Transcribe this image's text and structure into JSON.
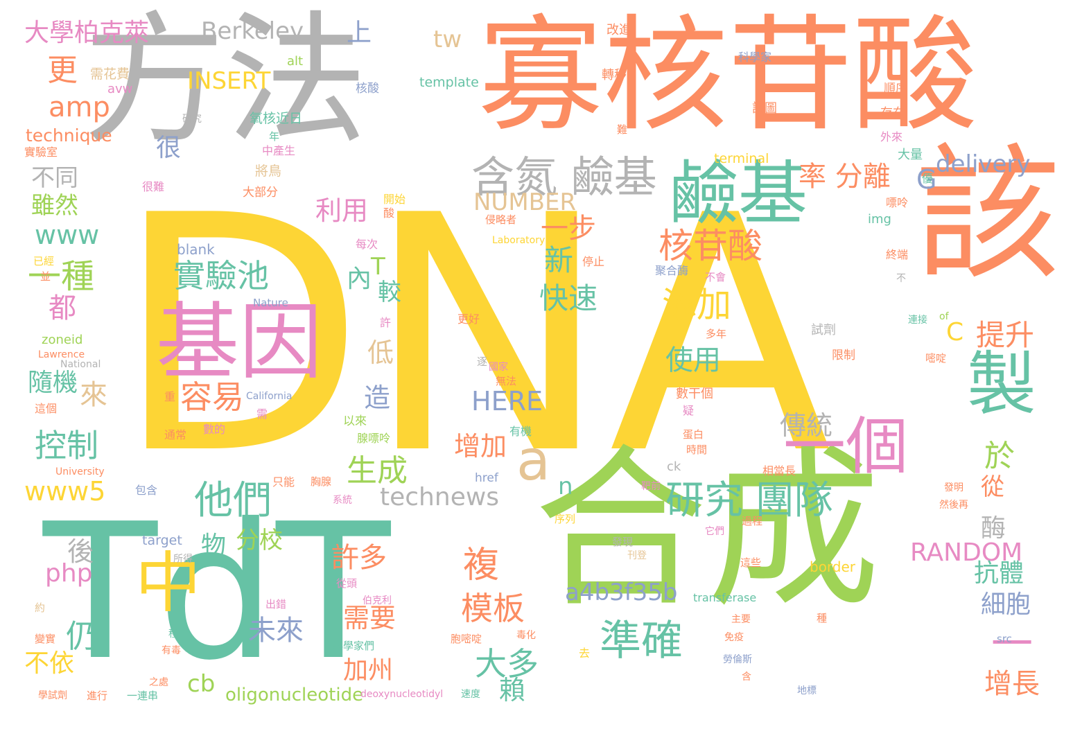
{
  "palette": {
    "yellow": "#fdd535",
    "green": "#9fd356",
    "teal": "#66c2a5",
    "orange": "#fc8d62",
    "gray": "#b3b3b3",
    "pink": "#e78ac3",
    "blue": "#8da0cb",
    "tan": "#e5c494"
  },
  "words": [
    {
      "text": "DNA",
      "color": "yellow"
    },
    {
      "text": "方法",
      "color": "gray"
    },
    {
      "text": "寡核苷酸",
      "color": "orange"
    },
    {
      "text": "該",
      "color": "orange"
    },
    {
      "text": "TdT",
      "color": "teal"
    },
    {
      "text": "合成",
      "color": "green"
    },
    {
      "text": "基因",
      "color": "pink"
    },
    {
      "text": "鹼基",
      "color": "teal"
    },
    {
      "text": "含氮 鹼基",
      "color": "gray"
    },
    {
      "text": "製",
      "color": "teal"
    },
    {
      "text": "一個",
      "color": "pink"
    },
    {
      "text": "中",
      "color": "yellow"
    },
    {
      "text": "a",
      "color": "tan"
    },
    {
      "text": "準確",
      "color": "teal"
    },
    {
      "text": "研究 團隊",
      "color": "teal"
    },
    {
      "text": "他們",
      "color": "teal"
    },
    {
      "text": "實驗池",
      "color": "teal"
    },
    {
      "text": "核苷酸",
      "color": "orange"
    },
    {
      "text": "添加",
      "color": "yellow"
    },
    {
      "text": "容易",
      "color": "orange"
    },
    {
      "text": "大學柏克萊",
      "color": "pink"
    },
    {
      "text": "Berkeley",
      "color": "gray"
    },
    {
      "text": "上",
      "color": "blue"
    },
    {
      "text": "tw",
      "color": "tan"
    },
    {
      "text": "更",
      "color": "orange"
    },
    {
      "text": "INSERT",
      "color": "yellow"
    },
    {
      "text": "amp",
      "color": "orange"
    },
    {
      "text": "technique",
      "color": "orange"
    },
    {
      "text": "很",
      "color": "blue"
    },
    {
      "text": "不同",
      "color": "gray"
    },
    {
      "text": "雖然",
      "color": "green"
    },
    {
      "text": "www",
      "color": "teal"
    },
    {
      "text": "一種",
      "color": "green"
    },
    {
      "text": "都",
      "color": "pink"
    },
    {
      "text": "來",
      "color": "tan"
    },
    {
      "text": "隨機",
      "color": "teal"
    },
    {
      "text": "控制",
      "color": "teal"
    },
    {
      "text": "www5",
      "color": "yellow"
    },
    {
      "text": "php",
      "color": "pink"
    },
    {
      "text": "仍",
      "color": "teal"
    },
    {
      "text": "不依",
      "color": "yellow"
    },
    {
      "text": "後",
      "color": "gray"
    },
    {
      "text": "NUMBER",
      "color": "tan"
    },
    {
      "text": "利用",
      "color": "pink"
    },
    {
      "text": "一步",
      "color": "orange"
    },
    {
      "text": "新",
      "color": "teal"
    },
    {
      "text": "快速",
      "color": "teal"
    },
    {
      "text": "內",
      "color": "teal"
    },
    {
      "text": "T",
      "color": "green"
    },
    {
      "text": "較",
      "color": "teal"
    },
    {
      "text": "低",
      "color": "tan"
    },
    {
      "text": "造",
      "color": "blue"
    },
    {
      "text": "分校",
      "color": "green"
    },
    {
      "text": "物",
      "color": "teal"
    },
    {
      "text": "許多",
      "color": "orange"
    },
    {
      "text": "需要",
      "color": "orange"
    },
    {
      "text": "未來",
      "color": "blue"
    },
    {
      "text": "加州",
      "color": "orange"
    },
    {
      "text": "cb",
      "color": "green"
    },
    {
      "text": "oligonucleotide",
      "color": "green"
    },
    {
      "text": "technews",
      "color": "gray"
    },
    {
      "text": "生成",
      "color": "green"
    },
    {
      "text": "增加",
      "color": "orange"
    },
    {
      "text": "HERE",
      "color": "blue"
    },
    {
      "text": "複",
      "color": "orange"
    },
    {
      "text": "模板",
      "color": "orange"
    },
    {
      "text": "大多",
      "color": "teal"
    },
    {
      "text": "賴",
      "color": "teal"
    },
    {
      "text": "a4b3f35b",
      "color": "blue"
    },
    {
      "text": "使用",
      "color": "teal"
    },
    {
      "text": "n",
      "color": "teal"
    },
    {
      "text": "傳統",
      "color": "gray"
    },
    {
      "text": "率 分離",
      "color": "orange"
    },
    {
      "text": "delivery",
      "color": "blue"
    },
    {
      "text": "G",
      "color": "blue"
    },
    {
      "text": "C",
      "color": "yellow"
    },
    {
      "text": "提升",
      "color": "orange"
    },
    {
      "text": "於",
      "color": "green"
    },
    {
      "text": "從",
      "color": "orange"
    },
    {
      "text": "酶",
      "color": "gray"
    },
    {
      "text": "RANDOM",
      "color": "pink"
    },
    {
      "text": "抗體",
      "color": "teal"
    },
    {
      "text": "細胞",
      "color": "blue"
    },
    {
      "text": "一",
      "color": "pink"
    },
    {
      "text": "增長",
      "color": "orange"
    },
    {
      "text": "template",
      "color": "teal"
    },
    {
      "text": "alt",
      "color": "green"
    },
    {
      "text": "需花費",
      "color": "tan"
    },
    {
      "text": "avw",
      "color": "pink"
    },
    {
      "text": "核酸",
      "color": "blue"
    },
    {
      "text": "研究",
      "color": "gray"
    },
    {
      "text": "氧核近日",
      "color": "teal"
    },
    {
      "text": "年",
      "color": "teal"
    },
    {
      "text": "中產生",
      "color": "pink"
    },
    {
      "text": "將鳥",
      "color": "tan"
    },
    {
      "text": "實驗室",
      "color": "orange"
    },
    {
      "text": "很難",
      "color": "pink"
    },
    {
      "text": "大部分",
      "color": "orange"
    },
    {
      "text": "開始",
      "color": "yellow"
    },
    {
      "text": "酸",
      "color": "orange"
    },
    {
      "text": "改進",
      "color": "orange"
    },
    {
      "text": "轉移",
      "color": "orange"
    },
    {
      "text": "科學家",
      "color": "blue"
    },
    {
      "text": "順序",
      "color": "orange"
    },
    {
      "text": "試圖",
      "color": "orange"
    },
    {
      "text": "存在",
      "color": "orange"
    },
    {
      "text": "難",
      "color": "orange"
    },
    {
      "text": "外來",
      "color": "pink"
    },
    {
      "text": "terminal",
      "color": "yellow"
    },
    {
      "text": "大量",
      "color": "teal"
    },
    {
      "text": "優",
      "color": "teal"
    },
    {
      "text": "嘌呤",
      "color": "orange"
    },
    {
      "text": "侵略者",
      "color": "orange"
    },
    {
      "text": "img",
      "color": "teal"
    },
    {
      "text": "Laboratory",
      "color": "yellow"
    },
    {
      "text": "blank",
      "color": "blue"
    },
    {
      "text": "每次",
      "color": "pink"
    },
    {
      "text": "停止",
      "color": "orange"
    },
    {
      "text": "聚合酶",
      "color": "blue"
    },
    {
      "text": "不會",
      "color": "pink"
    },
    {
      "text": "終端",
      "color": "orange"
    },
    {
      "text": "不",
      "color": "gray"
    },
    {
      "text": "已經",
      "color": "yellow"
    },
    {
      "text": "並",
      "color": "orange"
    },
    {
      "text": "Nature",
      "color": "blue"
    },
    {
      "text": "許",
      "color": "pink"
    },
    {
      "text": "更好",
      "color": "orange"
    },
    {
      "text": "試劑",
      "color": "gray"
    },
    {
      "text": "多年",
      "color": "orange"
    },
    {
      "text": "of",
      "color": "green"
    },
    {
      "text": "連接",
      "color": "teal"
    },
    {
      "text": "zoneid",
      "color": "green"
    },
    {
      "text": "Lawrence",
      "color": "orange"
    },
    {
      "text": "National",
      "color": "gray"
    },
    {
      "text": "逐",
      "color": "gray"
    },
    {
      "text": "國家",
      "color": "pink"
    },
    {
      "text": "無法",
      "color": "orange"
    },
    {
      "text": "限制",
      "color": "orange"
    },
    {
      "text": "嘧啶",
      "color": "orange"
    },
    {
      "text": "California",
      "color": "blue"
    },
    {
      "text": "重",
      "color": "orange"
    },
    {
      "text": "這個",
      "color": "orange"
    },
    {
      "text": "需",
      "color": "pink"
    },
    {
      "text": "數干個",
      "color": "orange"
    },
    {
      "text": "疑",
      "color": "pink"
    },
    {
      "text": "以來",
      "color": "green"
    },
    {
      "text": "腺嘌呤",
      "color": "green"
    },
    {
      "text": "有機",
      "color": "teal"
    },
    {
      "text": "通常",
      "color": "orange"
    },
    {
      "text": "數的",
      "color": "pink"
    },
    {
      "text": "蛋白",
      "color": "orange"
    },
    {
      "text": "時間",
      "color": "orange"
    },
    {
      "text": "University",
      "color": "orange"
    },
    {
      "text": "ck",
      "color": "gray"
    },
    {
      "text": "href",
      "color": "blue"
    },
    {
      "text": "相當長",
      "color": "orange"
    },
    {
      "text": "包含",
      "color": "blue"
    },
    {
      "text": "只能",
      "color": "orange"
    },
    {
      "text": "胸腺",
      "color": "orange"
    },
    {
      "text": "靶前",
      "color": "pink"
    },
    {
      "text": "系統",
      "color": "pink"
    },
    {
      "text": "發明",
      "color": "orange"
    },
    {
      "text": "然後再",
      "color": "orange"
    },
    {
      "text": "序列",
      "color": "yellow"
    },
    {
      "text": "它們",
      "color": "pink"
    },
    {
      "text": "過程",
      "color": "orange"
    },
    {
      "text": "target",
      "color": "blue"
    },
    {
      "text": "所得",
      "color": "gray"
    },
    {
      "text": "發現",
      "color": "gray"
    },
    {
      "text": "刊登",
      "color": "tan"
    },
    {
      "text": "border",
      "color": "yellow"
    },
    {
      "text": "這些",
      "color": "orange"
    },
    {
      "text": "從頭",
      "color": "pink"
    },
    {
      "text": "伯克利",
      "color": "pink"
    },
    {
      "text": "transferase",
      "color": "teal"
    },
    {
      "text": "出錯",
      "color": "pink"
    },
    {
      "text": "約",
      "color": "tan"
    },
    {
      "text": "種",
      "color": "orange"
    },
    {
      "text": "主要",
      "color": "orange"
    },
    {
      "text": "免疫",
      "color": "orange"
    },
    {
      "text": "src",
      "color": "blue"
    },
    {
      "text": "變實",
      "color": "orange"
    },
    {
      "text": "程",
      "color": "teal"
    },
    {
      "text": "有毒",
      "color": "orange"
    },
    {
      "text": "胞嘧啶",
      "color": "orange"
    },
    {
      "text": "毒化",
      "color": "orange"
    },
    {
      "text": "科學家們",
      "color": "teal"
    },
    {
      "text": "去",
      "color": "yellow"
    },
    {
      "text": "勞倫斯",
      "color": "blue"
    },
    {
      "text": "之處",
      "color": "orange"
    },
    {
      "text": "含",
      "color": "orange"
    },
    {
      "text": "學試劑",
      "color": "orange"
    },
    {
      "text": "進行",
      "color": "orange"
    },
    {
      "text": "一連串",
      "color": "teal"
    },
    {
      "text": "deoxynucleotidyl",
      "color": "pink"
    },
    {
      "text": "速度",
      "color": "teal"
    },
    {
      "text": "地標",
      "color": "blue"
    }
  ]
}
